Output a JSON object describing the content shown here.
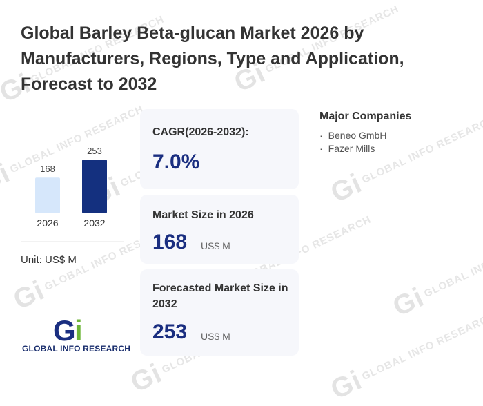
{
  "watermark": "GLOBAL INFO RESEARCH",
  "title": "Global Barley Beta-glucan Market 2026 by Manufacturers, Regions, Type and Application, Forecast to 2032",
  "chart_data": {
    "type": "bar",
    "categories": [
      "2026",
      "2032"
    ],
    "values": [
      168,
      253
    ],
    "colors": [
      "#d6e7fb",
      "#14307f"
    ],
    "ylim": [
      0,
      253
    ],
    "grid": false
  },
  "unit_label": "Unit: US$ M",
  "cards": {
    "cagr": {
      "label": "CAGR(2026-2032):",
      "value": "7.0%"
    },
    "market_size": {
      "label": "Market Size in 2026",
      "value": "168",
      "unit": "US$ M"
    },
    "forecast": {
      "label": "Forecasted Market Size in 2032",
      "value": "253",
      "unit": "US$ M"
    }
  },
  "companies": {
    "heading": "Major Companies",
    "items": [
      "Beneo GmbH",
      "Fazer Mills"
    ]
  },
  "logo": {
    "text": "GLOBAL INFO RESEARCH",
    "colors": [
      "#1a2e80",
      "#6fb63a"
    ]
  }
}
